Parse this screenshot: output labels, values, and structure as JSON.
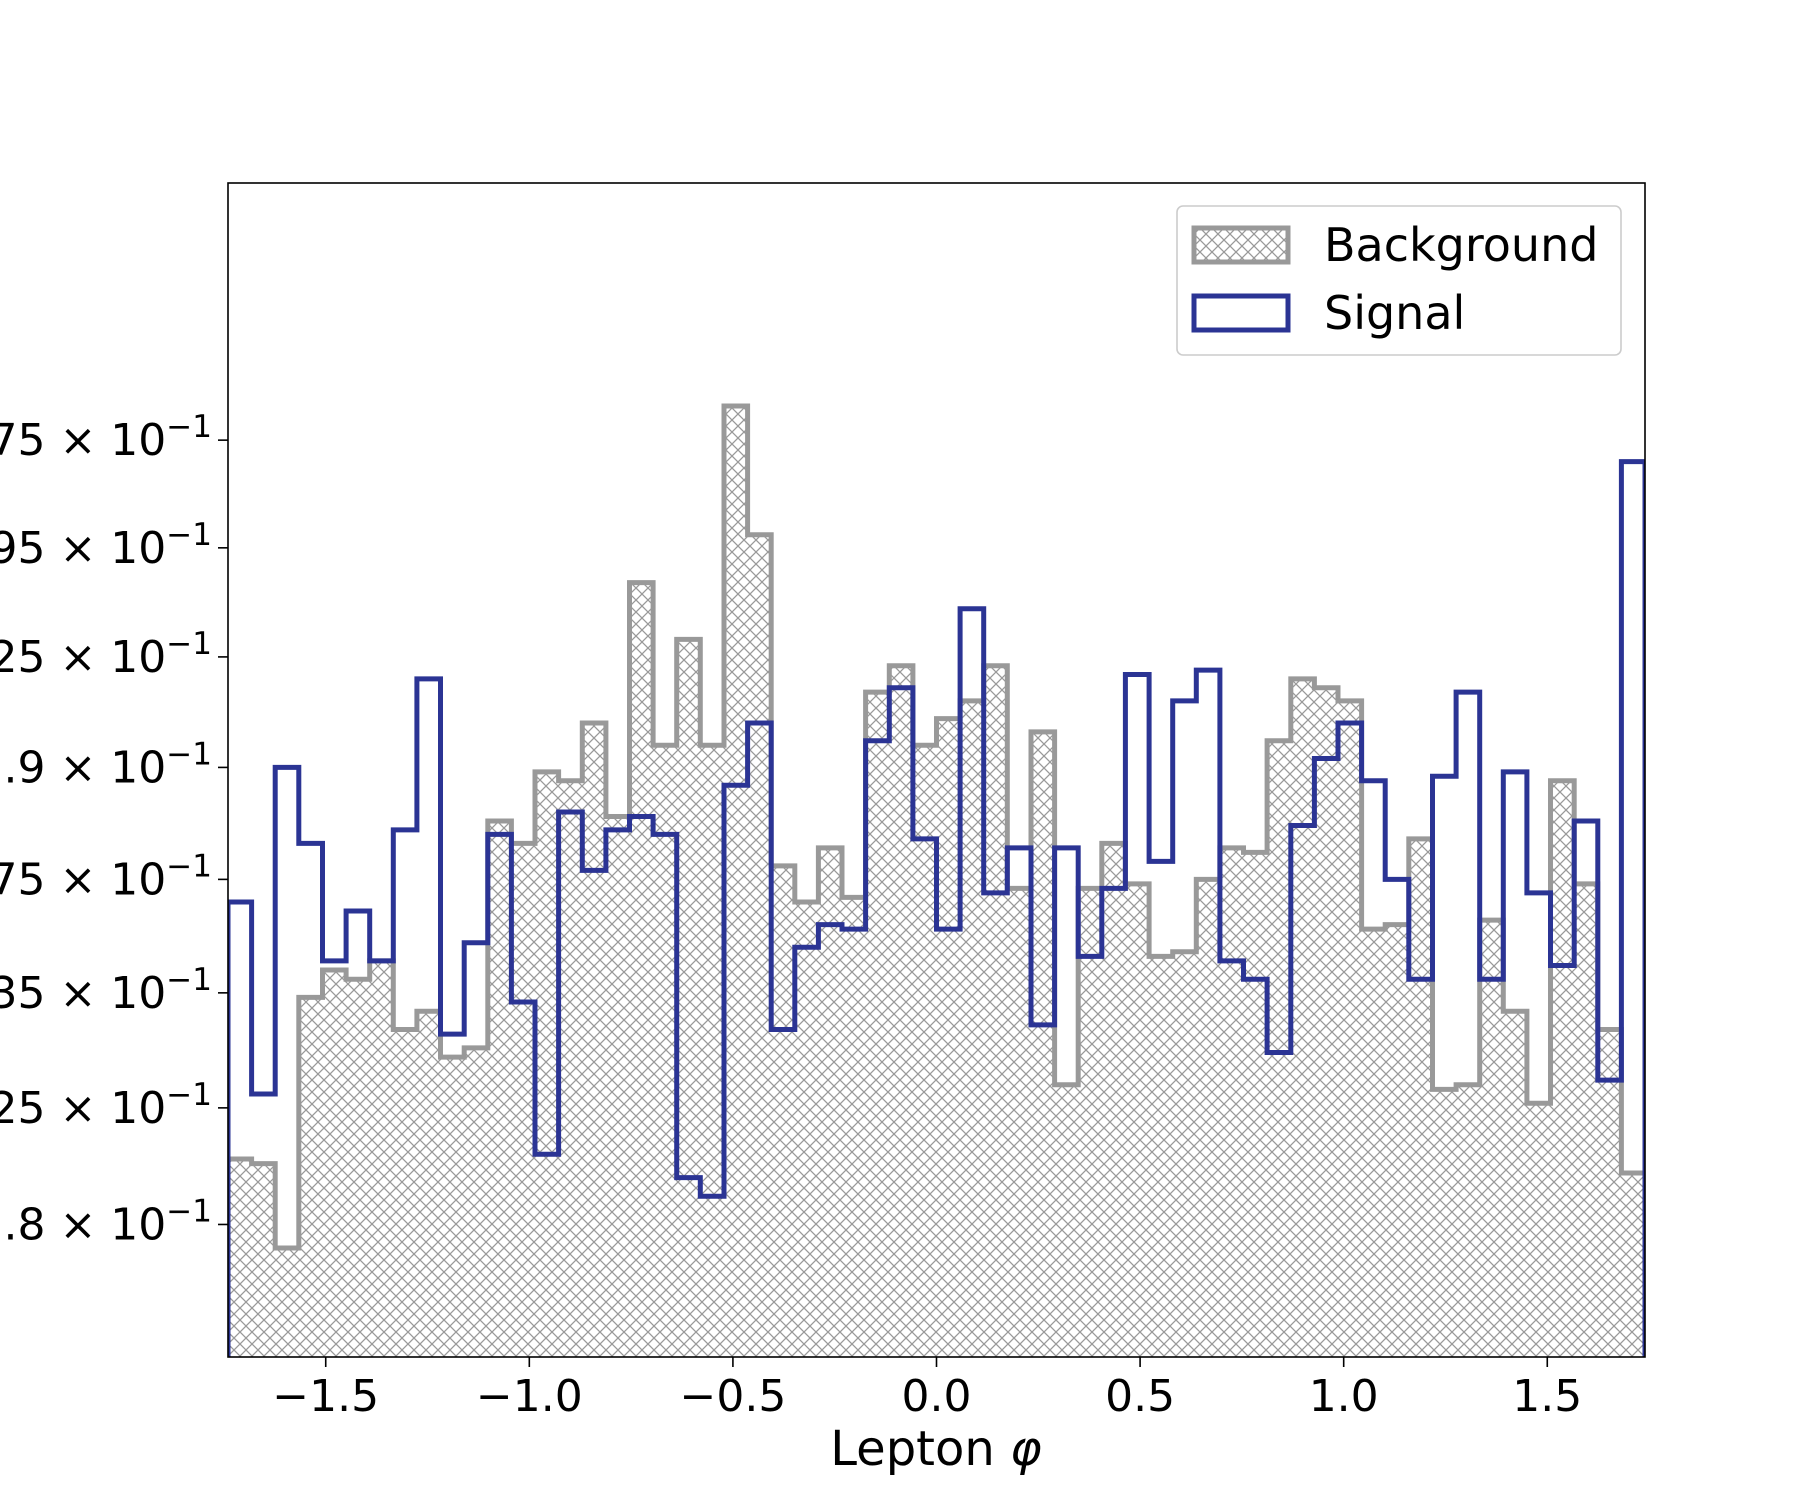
{
  "chart_data": {
    "type": "histogram",
    "xlabel": "Lepton $\\phi$",
    "xlabel_text": "Lepton ",
    "xlabel_symbol": "φ",
    "ylabel": "",
    "yscale": "log",
    "xlim": [
      -1.74,
      1.74
    ],
    "ylim": [
      0.1772,
      0.2036
    ],
    "xticks": [
      -1.5,
      -1.0,
      -0.5,
      0.0,
      0.5,
      1.0,
      1.5
    ],
    "xtick_labels": [
      "−1.5",
      "−1.0",
      "−0.5",
      "0.0",
      "0.5",
      "1.0",
      "1.5"
    ],
    "yticks": [
      0.18,
      0.1825,
      0.185,
      0.1875,
      0.19,
      0.1925,
      0.195,
      0.1975
    ],
    "ytick_labels": [
      ".8 × 10",
      "25 × 10",
      "35 × 10",
      "75 × 10",
      ".9 × 10",
      "25 × 10",
      "95 × 10",
      "75 × 10"
    ],
    "ytick_exponent": "−1",
    "grid": false,
    "legend_position": "top-right",
    "bin_edges": [
      -1.74,
      -1.682,
      -1.624,
      -1.566,
      -1.508,
      -1.45,
      -1.392,
      -1.334,
      -1.276,
      -1.218,
      -1.16,
      -1.102,
      -1.044,
      -0.986,
      -0.928,
      -0.87,
      -0.812,
      -0.754,
      -0.696,
      -0.638,
      -0.58,
      -0.522,
      -0.464,
      -0.406,
      -0.348,
      -0.29,
      -0.232,
      -0.174,
      -0.116,
      -0.058,
      0.0,
      0.058,
      0.116,
      0.174,
      0.232,
      0.29,
      0.348,
      0.406,
      0.464,
      0.522,
      0.58,
      0.638,
      0.696,
      0.754,
      0.812,
      0.87,
      0.928,
      0.986,
      1.044,
      1.102,
      1.16,
      1.218,
      1.276,
      1.334,
      1.392,
      1.45,
      1.508,
      1.566,
      1.624,
      1.682,
      1.74
    ],
    "series": [
      {
        "name": "Background",
        "style": "hatched",
        "color": "#999999",
        "values": [
          0.1814,
          0.1813,
          0.1795,
          0.1849,
          0.1855,
          0.1853,
          0.1857,
          0.1842,
          0.1846,
          0.1836,
          0.1838,
          0.1888,
          0.1883,
          0.1899,
          0.1897,
          0.191,
          0.1889,
          0.1942,
          0.1905,
          0.1929,
          0.1905,
          0.1983,
          0.1953,
          0.1878,
          0.187,
          0.1882,
          0.1871,
          0.1917,
          0.1923,
          0.1905,
          0.1911,
          0.1915,
          0.1923,
          0.1873,
          0.1908,
          0.183,
          0.1873,
          0.1883,
          0.1874,
          0.1858,
          0.1859,
          0.1875,
          0.1882,
          0.1881,
          0.1906,
          0.192,
          0.1918,
          0.1915,
          0.1864,
          0.1865,
          0.1884,
          0.1829,
          0.183,
          0.1866,
          0.1846,
          0.1826,
          0.1897,
          0.1874,
          0.1842,
          0.1811
        ]
      },
      {
        "name": "Signal",
        "style": "step",
        "color": "#2b3494",
        "values": [
          0.187,
          0.1828,
          0.19,
          0.1883,
          0.1857,
          0.1868,
          0.1857,
          0.1886,
          0.192,
          0.1841,
          0.1861,
          0.1885,
          0.1848,
          0.1815,
          0.189,
          0.1877,
          0.1886,
          0.1889,
          0.1885,
          0.181,
          0.1806,
          0.1896,
          0.191,
          0.1842,
          0.186,
          0.1865,
          0.1864,
          0.1906,
          0.1918,
          0.1884,
          0.1864,
          0.1936,
          0.1872,
          0.1882,
          0.1843,
          0.1882,
          0.1858,
          0.1873,
          0.1921,
          0.1879,
          0.1915,
          0.1922,
          0.1857,
          0.1853,
          0.1837,
          0.1887,
          0.1902,
          0.191,
          0.1897,
          0.1875,
          0.1853,
          0.1898,
          0.1917,
          0.1853,
          0.1899,
          0.1872,
          0.1856,
          0.1888,
          0.1831,
          0.197
        ]
      }
    ]
  }
}
